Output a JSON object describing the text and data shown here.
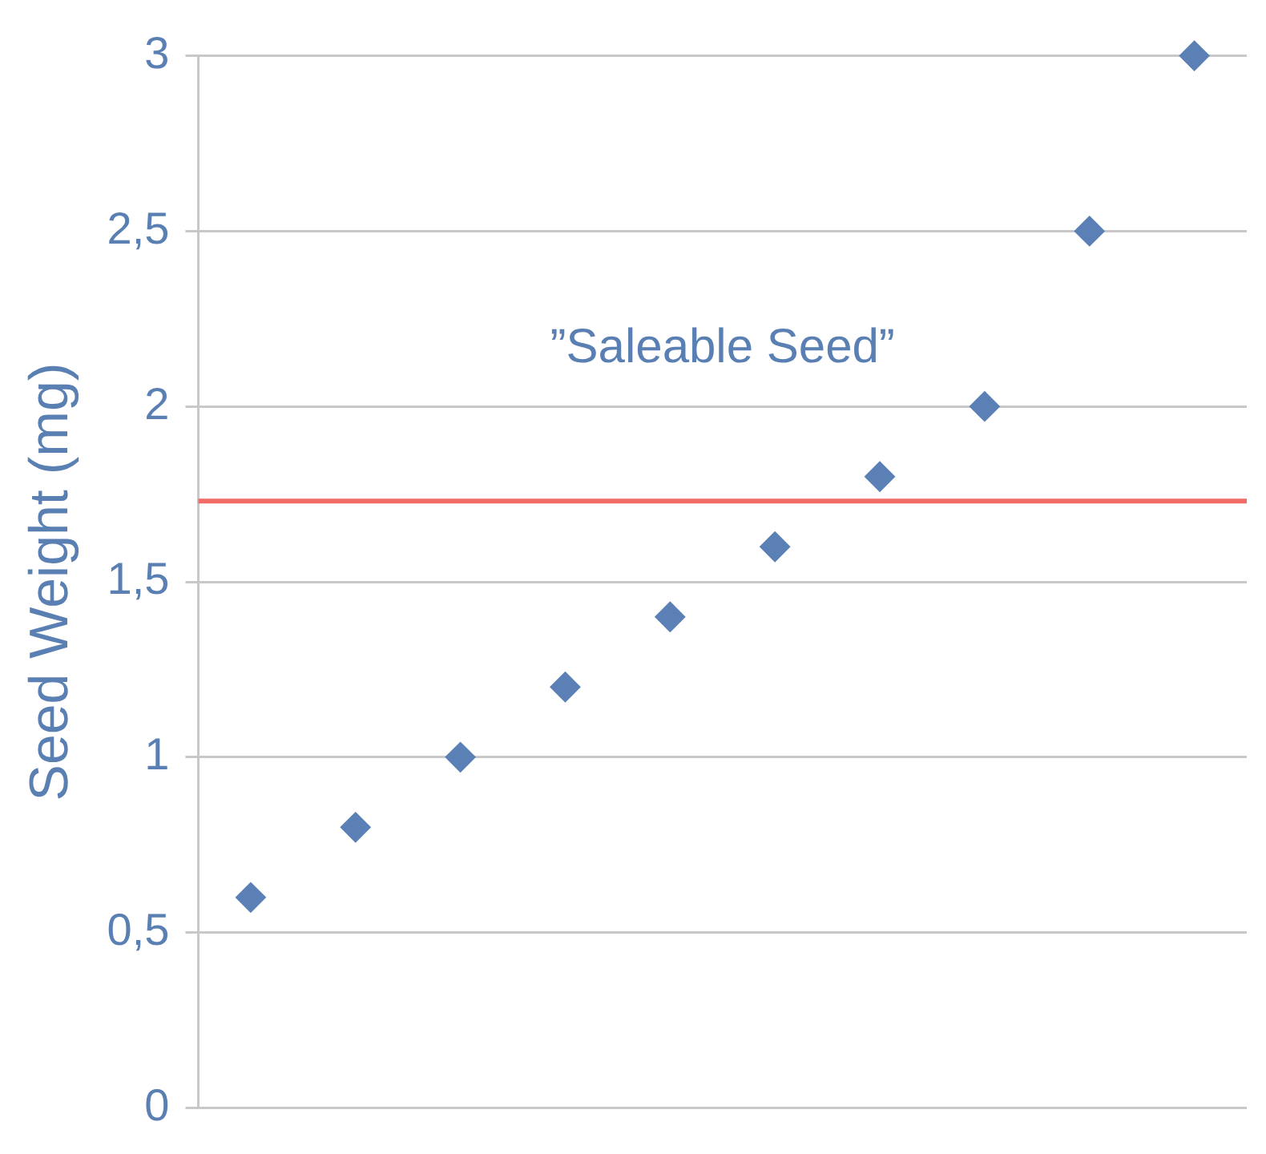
{
  "chart_data": {
    "type": "scatter",
    "ylabel": "Seed Weight (mg)",
    "categories": [
      null,
      null,
      null,
      null,
      null,
      null,
      null,
      null,
      null,
      null
    ],
    "series": [
      {
        "color": "#5b80b6",
        "values": [
          0.6,
          0.8,
          1,
          1.2,
          1.4,
          1.6,
          1.8,
          2,
          2.5,
          3
        ]
      }
    ],
    "ylim": [
      0,
      3
    ],
    "yticks": [
      0,
      {
        "value": 0.5,
        "label": "0,5"
      },
      1,
      {
        "value": 1.5,
        "label": "1,5"
      },
      2,
      {
        "value": 2.5,
        "label": "2,5"
      },
      3
    ],
    "ref_lines": [
      {
        "axis": "y",
        "value": 1.73,
        "label": "”Saleable Seed”",
        "color": "#f26b66",
        "line_style": "solid"
      }
    ],
    "grid": "y",
    "marker": "diamond",
    "legend": false,
    "tick_labels": "y"
  }
}
